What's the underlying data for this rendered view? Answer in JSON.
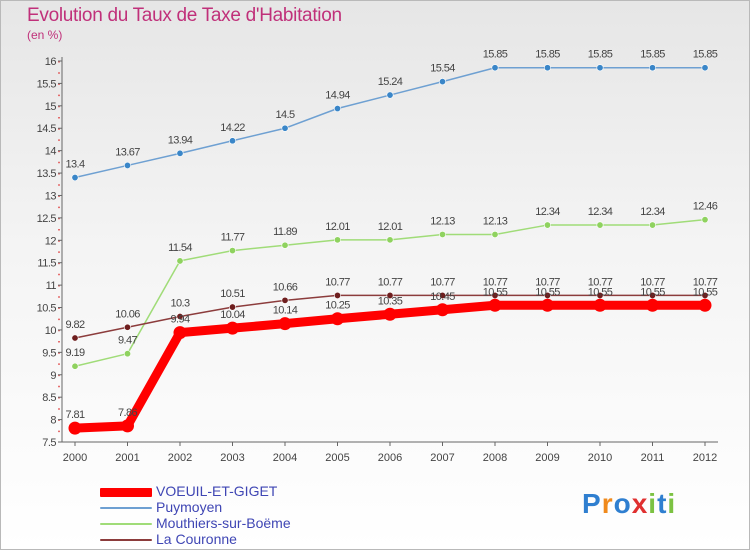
{
  "chart_data": {
    "type": "line",
    "title": "Evolution du Taux de Taxe d'Habitation",
    "subtitle": "(en %)",
    "xlabel": "",
    "ylabel": "",
    "x": [
      2000,
      2001,
      2002,
      2003,
      2004,
      2005,
      2006,
      2007,
      2008,
      2009,
      2010,
      2011,
      2012
    ],
    "ylim": [
      7.5,
      16
    ],
    "yticks": [
      7.5,
      8,
      8.5,
      9,
      9.5,
      10,
      10.5,
      11,
      11.5,
      12,
      12.5,
      13,
      13.5,
      14,
      14.5,
      15,
      15.5,
      16
    ],
    "grid": false,
    "legend_position": "bottom-left",
    "series": [
      {
        "name": "VOEUIL-ET-GIGET",
        "color": "#ff0000",
        "marker_color": "#ff0000",
        "values": [
          7.81,
          7.86,
          9.94,
          10.04,
          10.14,
          10.25,
          10.35,
          10.45,
          10.55,
          10.55,
          10.55,
          10.55,
          10.55
        ],
        "labels": [
          "7.81",
          "7.86",
          "9.94",
          "10.04",
          "10.14",
          "10.25",
          "10.35",
          "10.45",
          "10.55",
          "10.55",
          "10.55",
          "10.55",
          "10.55"
        ]
      },
      {
        "name": "Puymoyen",
        "color": "#6ea0d2",
        "marker_color": "#3a86c8",
        "values": [
          13.4,
          13.67,
          13.94,
          14.22,
          14.5,
          14.94,
          15.24,
          15.54,
          15.85,
          15.85,
          15.85,
          15.85,
          15.85
        ],
        "labels": [
          "13.4",
          "13.67",
          "13.94",
          "14.22",
          "14.5",
          "14.94",
          "15.24",
          "15.54",
          "15.85",
          "15.85",
          "15.85",
          "15.85",
          "15.85"
        ]
      },
      {
        "name": "Mouthiers-sur-Boëme",
        "color": "#a0dc78",
        "marker_color": "#8fd25f",
        "values": [
          9.19,
          9.47,
          11.54,
          11.77,
          11.89,
          12.01,
          12.01,
          12.13,
          12.13,
          12.34,
          12.34,
          12.34,
          12.46
        ],
        "labels": [
          "9.19",
          "9.47",
          "11.54",
          "11.77",
          "11.89",
          "12.01",
          "12.01",
          "12.13",
          "12.13",
          "12.34",
          "12.34",
          "12.34",
          "12.46"
        ]
      },
      {
        "name": "La Couronne",
        "color": "#8c3c3c",
        "marker_color": "#6e1e1e",
        "values": [
          9.82,
          10.06,
          10.3,
          10.51,
          10.66,
          10.77,
          10.77,
          10.77,
          10.77,
          10.77,
          10.77,
          10.77,
          10.77
        ],
        "labels": [
          "9.82",
          "10.06",
          "10.3",
          "10.51",
          "10.66",
          "10.77",
          "10.77",
          "10.77",
          "10.77",
          "10.77",
          "10.77",
          "10.77",
          "10.77"
        ]
      }
    ]
  },
  "logo": {
    "text": "Proxiti",
    "letters": [
      {
        "ch": "P",
        "color": "#2f7fd0"
      },
      {
        "ch": "r",
        "color": "#f08a1c"
      },
      {
        "ch": "o",
        "color": "#2f7fd0"
      },
      {
        "ch": "x",
        "color": "#e03030"
      },
      {
        "ch": "i",
        "color": "#7cc242"
      },
      {
        "ch": "t",
        "color": "#2f7fd0"
      },
      {
        "ch": "i",
        "color": "#7cc242"
      }
    ]
  }
}
